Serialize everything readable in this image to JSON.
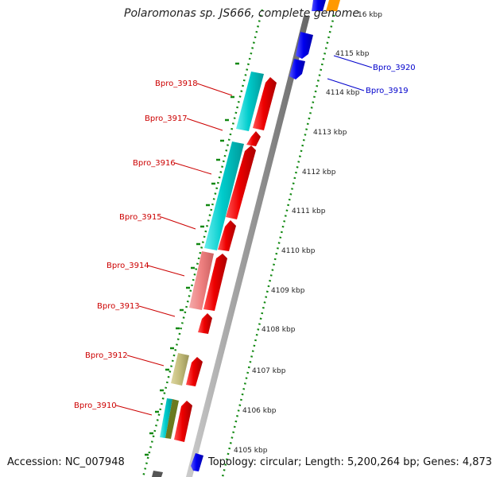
{
  "title": "Polaromonas sp. JS666, complete genome",
  "accession_text": "Accession: NC_007948",
  "topology_text": "Topology: circular; Length: 5,200,264 bp; Genes: 4,873",
  "kbp_labels": [
    "16 kbp",
    "4115 kbp",
    "4114 kbp",
    "4113 kbp",
    "4112 kbp",
    "4111 kbp",
    "4110 kbp",
    "4109 kbp",
    "4108 kbp",
    "4107 kbp",
    "4106 kbp",
    "4105 kbp"
  ],
  "gene_labels": [
    {
      "text": "Bpro_3920",
      "color": "#0000cc"
    },
    {
      "text": "Bpro_3919",
      "color": "#0000cc"
    },
    {
      "text": "Bpro_3918",
      "color": "#cc0000"
    },
    {
      "text": "Bpro_3917",
      "color": "#cc0000"
    },
    {
      "text": "Bpro_3916",
      "color": "#cc0000"
    },
    {
      "text": "Bpro_3915",
      "color": "#cc0000"
    },
    {
      "text": "Bpro_3914",
      "color": "#cc0000"
    },
    {
      "text": "Bpro_3913",
      "color": "#cc0000"
    },
    {
      "text": "Bpro_3912",
      "color": "#cc0000"
    },
    {
      "text": "Bpro_3910",
      "color": "#cc0000"
    }
  ],
  "colors": {
    "forward_gene": "#ee0000",
    "reverse_gene": "#0000ee",
    "cds_cyan": "#00cccc",
    "cds_pink": "#ee8080",
    "cds_khaki": "#c2bb7a",
    "cds_olive": "#6b7a1e",
    "cds_orange": "#ff9900",
    "backbone": "#999999",
    "tick": "#118811"
  }
}
